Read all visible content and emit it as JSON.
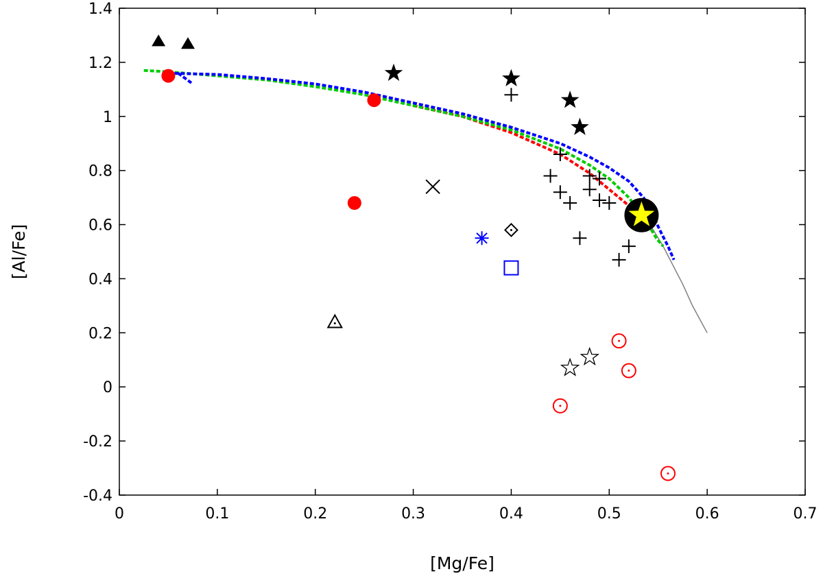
{
  "chart_data": {
    "type": "scatter",
    "title": "",
    "xlabel": "[Mg/Fe]",
    "ylabel": "[Al/Fe]",
    "xlim": [
      0,
      0.7
    ],
    "ylim": [
      -0.4,
      1.4
    ],
    "grid": false,
    "xticks": [
      0,
      0.1,
      0.2,
      0.3,
      0.4,
      0.5,
      0.6,
      0.7
    ],
    "yticks": [
      -0.4,
      -0.2,
      0,
      0.2,
      0.4,
      0.6,
      0.8,
      1,
      1.2,
      1.4
    ],
    "xtick_labels": [
      "0",
      "0.1",
      "0.2",
      "0.3",
      "0.4",
      "0.5",
      "0.6",
      "0.7"
    ],
    "ytick_labels": [
      "-0.4",
      "-0.2",
      "0",
      "0.2",
      "0.4",
      "0.6",
      "0.8",
      "1",
      "1.2",
      "1.4"
    ],
    "lines": [
      {
        "name": "model-gray",
        "color": "#808080",
        "style": "solid",
        "points": [
          [
            0.533,
            0.635
          ],
          [
            0.545,
            0.58
          ],
          [
            0.555,
            0.52
          ],
          [
            0.565,
            0.45
          ],
          [
            0.575,
            0.38
          ],
          [
            0.585,
            0.3
          ],
          [
            0.6,
            0.2
          ]
        ]
      },
      {
        "name": "model-red",
        "color": "#ff0000",
        "style": "dashed",
        "points": [
          [
            0.3,
            1.04
          ],
          [
            0.35,
            1.0
          ],
          [
            0.4,
            0.94
          ],
          [
            0.45,
            0.86
          ],
          [
            0.48,
            0.79
          ],
          [
            0.5,
            0.73
          ],
          [
            0.52,
            0.67
          ],
          [
            0.533,
            0.635
          ]
        ]
      },
      {
        "name": "model-green",
        "color": "#00cc00",
        "style": "dashed",
        "points": [
          [
            0.025,
            1.17
          ],
          [
            0.05,
            1.165
          ],
          [
            0.1,
            1.15
          ],
          [
            0.15,
            1.135
          ],
          [
            0.2,
            1.11
          ],
          [
            0.25,
            1.08
          ],
          [
            0.3,
            1.04
          ],
          [
            0.35,
            1.0
          ],
          [
            0.4,
            0.95
          ],
          [
            0.45,
            0.88
          ],
          [
            0.48,
            0.82
          ],
          [
            0.5,
            0.77
          ],
          [
            0.52,
            0.7
          ],
          [
            0.54,
            0.6
          ],
          [
            0.548,
            0.55
          ],
          [
            0.555,
            0.52
          ]
        ]
      },
      {
        "name": "model-blue",
        "color": "#0000ff",
        "style": "dashed",
        "points": [
          [
            0.05,
            1.16
          ],
          [
            0.1,
            1.155
          ],
          [
            0.15,
            1.14
          ],
          [
            0.2,
            1.12
          ],
          [
            0.25,
            1.09
          ],
          [
            0.3,
            1.05
          ],
          [
            0.35,
            1.01
          ],
          [
            0.4,
            0.96
          ],
          [
            0.45,
            0.9
          ],
          [
            0.48,
            0.85
          ],
          [
            0.5,
            0.81
          ],
          [
            0.52,
            0.76
          ],
          [
            0.535,
            0.7
          ],
          [
            0.545,
            0.63
          ],
          [
            0.553,
            0.57
          ],
          [
            0.56,
            0.52
          ],
          [
            0.566,
            0.47
          ]
        ]
      },
      {
        "name": "model-blue-hook",
        "color": "#0000ff",
        "style": "dashed",
        "points": [
          [
            0.06,
            1.16
          ],
          [
            0.075,
            1.12
          ]
        ]
      }
    ],
    "series": [
      {
        "name": "red-filled-circle",
        "marker": "circle-filled",
        "color": "#ff0000",
        "points": [
          [
            0.05,
            1.15
          ],
          [
            0.26,
            1.06
          ],
          [
            0.24,
            0.68
          ]
        ]
      },
      {
        "name": "black-filled-triangle",
        "marker": "triangle-filled",
        "color": "#000000",
        "points": [
          [
            0.04,
            1.28
          ],
          [
            0.07,
            1.27
          ]
        ]
      },
      {
        "name": "black-filled-star",
        "marker": "star-filled",
        "color": "#000000",
        "points": [
          [
            0.28,
            1.16
          ],
          [
            0.4,
            1.14
          ],
          [
            0.46,
            1.06
          ],
          [
            0.47,
            0.96
          ]
        ]
      },
      {
        "name": "black-plus",
        "marker": "plus",
        "color": "#000000",
        "points": [
          [
            0.4,
            1.08
          ],
          [
            0.45,
            0.86
          ],
          [
            0.44,
            0.78
          ],
          [
            0.45,
            0.72
          ],
          [
            0.46,
            0.68
          ],
          [
            0.48,
            0.78
          ],
          [
            0.48,
            0.73
          ],
          [
            0.49,
            0.77
          ],
          [
            0.49,
            0.69
          ],
          [
            0.5,
            0.68
          ],
          [
            0.47,
            0.55
          ],
          [
            0.52,
            0.52
          ],
          [
            0.51,
            0.47
          ]
        ]
      },
      {
        "name": "black-cross",
        "marker": "x",
        "color": "#000000",
        "points": [
          [
            0.32,
            0.74
          ]
        ]
      },
      {
        "name": "black-diamond-dot",
        "marker": "diamond-dot",
        "color": "#000000",
        "points": [
          [
            0.4,
            0.58
          ]
        ]
      },
      {
        "name": "blue-asterisk",
        "marker": "asterisk",
        "color": "#0000ff",
        "points": [
          [
            0.37,
            0.55
          ]
        ]
      },
      {
        "name": "blue-open-square",
        "marker": "square-open",
        "color": "#0000ff",
        "points": [
          [
            0.4,
            0.44
          ]
        ]
      },
      {
        "name": "black-open-triangle-dot",
        "marker": "triangle-dot",
        "color": "#000000",
        "points": [
          [
            0.22,
            0.24
          ]
        ]
      },
      {
        "name": "open-star",
        "marker": "star-open",
        "color": "#000000",
        "points": [
          [
            0.46,
            0.07
          ],
          [
            0.48,
            0.11
          ]
        ]
      },
      {
        "name": "red-circle-dot",
        "marker": "circle-dot",
        "color": "#ff0000",
        "points": [
          [
            0.51,
            0.17
          ],
          [
            0.52,
            0.06
          ],
          [
            0.45,
            -0.07
          ],
          [
            0.56,
            -0.32
          ]
        ]
      },
      {
        "name": "highlight-star",
        "marker": "big-yellow-star",
        "color": "#ffff00",
        "points": [
          [
            0.533,
            0.635
          ]
        ]
      }
    ]
  }
}
